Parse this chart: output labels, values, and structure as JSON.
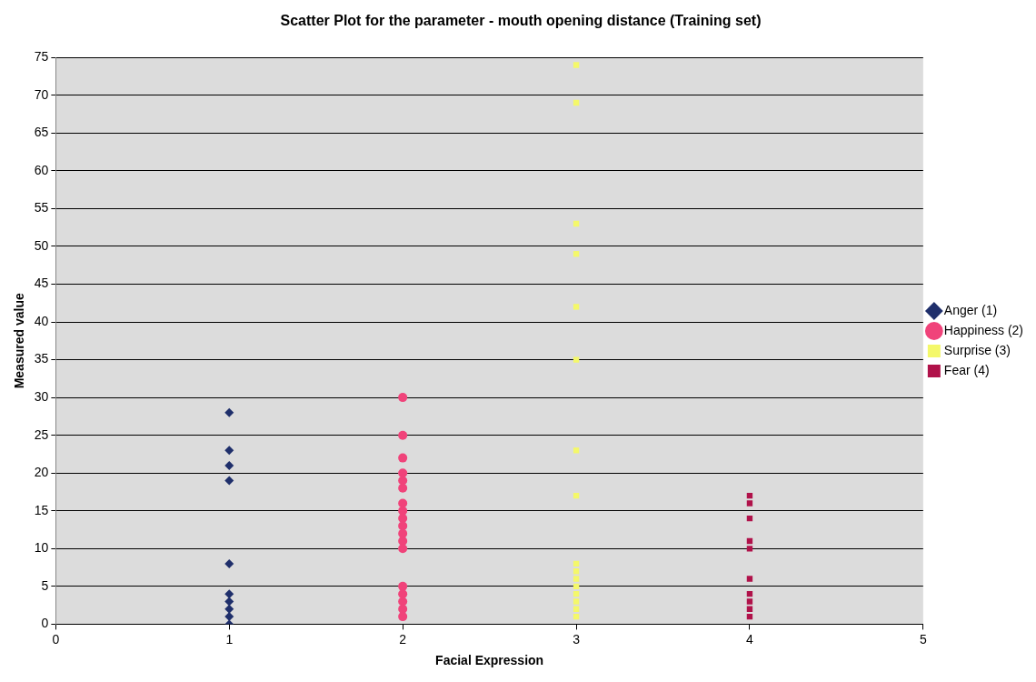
{
  "chart_data": {
    "type": "scatter",
    "title": "Scatter Plot for the parameter - mouth opening distance (Training set)",
    "xlabel": "Facial Expression",
    "ylabel": "Measured value",
    "xlim": [
      0,
      5
    ],
    "xticks": [
      0,
      1,
      2,
      3,
      4,
      5
    ],
    "ylim": [
      0,
      75
    ],
    "yticks": [
      0,
      5,
      10,
      15,
      20,
      25,
      30,
      35,
      40,
      45,
      50,
      55,
      60,
      65,
      70,
      75
    ],
    "grid": "y",
    "legend": "right",
    "series": [
      {
        "name": "Anger (1)",
        "color": "#1f2f6b",
        "marker": "diamond",
        "x": [
          1,
          1,
          1,
          1,
          1,
          1,
          1,
          1,
          1,
          1
        ],
        "values": [
          28,
          23,
          21,
          19,
          8,
          4,
          3,
          2,
          1,
          0
        ]
      },
      {
        "name": "Happiness (2)",
        "color": "#f0437a",
        "marker": "circle",
        "x": [
          2,
          2,
          2,
          2,
          2,
          2,
          2,
          2,
          2,
          2,
          2,
          2,
          2,
          2,
          2,
          2,
          2,
          2
        ],
        "values": [
          30,
          25,
          22,
          20,
          19,
          18,
          16,
          15,
          14,
          13,
          12,
          11,
          10,
          5,
          4,
          3,
          2,
          1
        ]
      },
      {
        "name": "Surprise (3)",
        "color": "#f4f86a",
        "marker": "square",
        "x": [
          3,
          3,
          3,
          3,
          3,
          3,
          3,
          3,
          3,
          3,
          3,
          3,
          3,
          3,
          3,
          3
        ],
        "values": [
          74,
          69,
          53,
          49,
          42,
          35,
          23,
          17,
          8,
          7,
          6,
          5,
          4,
          3,
          2,
          1
        ]
      },
      {
        "name": "Fear (4)",
        "color": "#b0124a",
        "marker": "square",
        "x": [
          4,
          4,
          4,
          4,
          4,
          4,
          4,
          4,
          4,
          4
        ],
        "values": [
          17,
          16,
          14,
          11,
          10,
          6,
          4,
          3,
          2,
          1
        ]
      }
    ]
  }
}
